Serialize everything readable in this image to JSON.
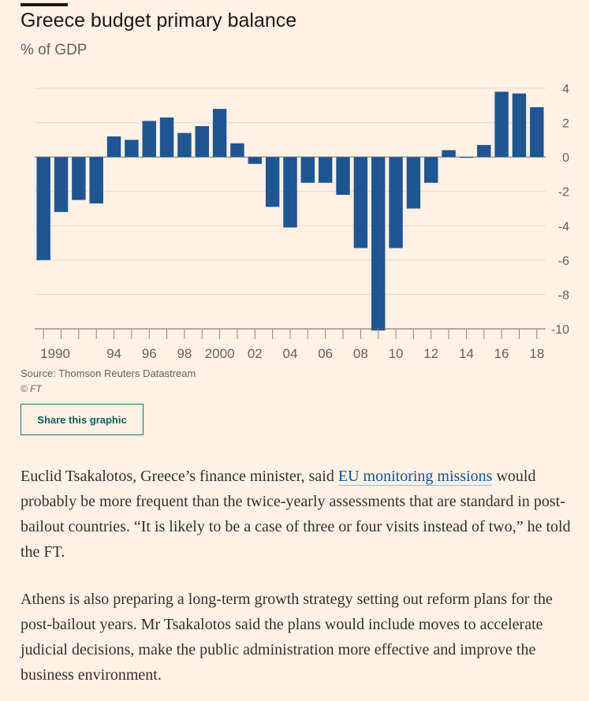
{
  "header": {
    "title": "Greece budget primary balance",
    "subtitle": "% of GDP"
  },
  "chart_data": {
    "type": "bar",
    "title": "Greece budget primary balance",
    "ylabel": "% of GDP",
    "ylim": [
      -10,
      4
    ],
    "yticks": [
      4,
      2,
      0,
      -2,
      -4,
      -6,
      -8,
      -10
    ],
    "x": [
      1990,
      1991,
      1992,
      1993,
      1994,
      1995,
      1996,
      1997,
      1998,
      1999,
      2000,
      2001,
      2002,
      2003,
      2004,
      2005,
      2006,
      2007,
      2008,
      2009,
      2010,
      2011,
      2012,
      2013,
      2014,
      2015,
      2016,
      2017,
      2018
    ],
    "values": [
      -6.0,
      -3.2,
      -2.5,
      -2.7,
      1.2,
      1.0,
      2.1,
      2.3,
      1.4,
      1.8,
      2.8,
      0.8,
      -0.4,
      -2.9,
      -4.1,
      -1.5,
      -1.5,
      -2.2,
      -5.3,
      -10.1,
      -5.3,
      -3.0,
      -1.5,
      0.4,
      0.0,
      0.7,
      3.8,
      3.7,
      2.9
    ],
    "xtick_labels": [
      {
        "year": 1990,
        "label": "1990"
      },
      {
        "year": 1994,
        "label": "94"
      },
      {
        "year": 1996,
        "label": "96"
      },
      {
        "year": 1998,
        "label": "98"
      },
      {
        "year": 2000,
        "label": "2000"
      },
      {
        "year": 2002,
        "label": "02"
      },
      {
        "year": 2004,
        "label": "04"
      },
      {
        "year": 2006,
        "label": "06"
      },
      {
        "year": 2008,
        "label": "08"
      },
      {
        "year": 2010,
        "label": "10"
      },
      {
        "year": 2012,
        "label": "12"
      },
      {
        "year": 2014,
        "label": "14"
      },
      {
        "year": 2016,
        "label": "16"
      },
      {
        "year": 2018,
        "label": "18"
      }
    ],
    "grid": true,
    "bar_color": "#1f5591"
  },
  "footer": {
    "source": "Source: Thomson Reuters Datastream",
    "copyright": "© FT",
    "share_label": "Share this graphic"
  },
  "article": {
    "p1_before": "Euclid Tsakalotos, Greece’s finance minister, said ",
    "p1_link": "EU monitoring missions",
    "p1_after": " would probably be more frequent than the twice-yearly assessments that are standard in post-bailout countries. “It is likely to be a case of three or four visits instead of two,” he told the FT.",
    "p2": "Athens is also preparing a long-term growth strategy setting out reform plans for the post-bailout years. Mr Tsakalotos said the plans would include moves to accelerate judicial decisions, make the public administration more effective and improve the business environment."
  }
}
